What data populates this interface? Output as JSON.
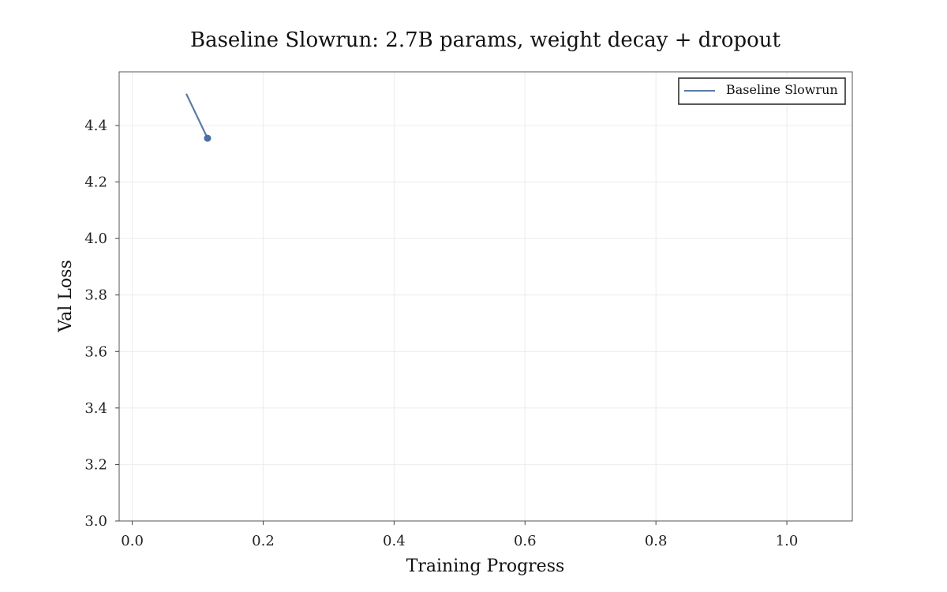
{
  "chart_data": {
    "type": "line",
    "title": "Baseline Slowrun: 2.7B params, weight decay + dropout",
    "xlabel": "Training Progress",
    "ylabel": "Val Loss",
    "xlim": [
      -0.02,
      1.1
    ],
    "ylim": [
      3.0,
      4.59
    ],
    "xticks": [
      0.0,
      0.2,
      0.4,
      0.6,
      0.8,
      1.0
    ],
    "xtick_labels": [
      "0.0",
      "0.2",
      "0.4",
      "0.6",
      "0.8",
      "1.0"
    ],
    "yticks": [
      3.0,
      3.2,
      3.4,
      3.6,
      3.8,
      4.0,
      4.2,
      4.4
    ],
    "ytick_labels": [
      "3.0",
      "3.2",
      "3.4",
      "3.6",
      "3.8",
      "4.0",
      "4.2",
      "4.4"
    ],
    "grid": true,
    "legend_position": "top-right",
    "series": [
      {
        "name": "Baseline Slowrun",
        "x": [
          0.083,
          0.115
        ],
        "y": [
          4.51,
          4.355
        ],
        "color": "#5b7ba6",
        "end_marker": true
      }
    ]
  }
}
